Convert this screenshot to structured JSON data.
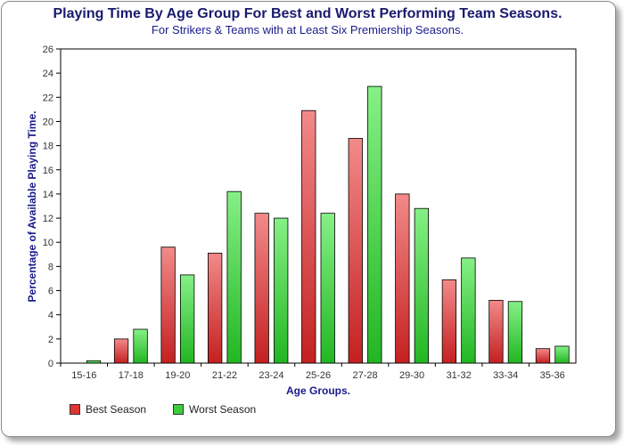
{
  "chart_data": {
    "type": "bar",
    "title": "Playing Time By Age Group For Best and Worst Performing Team Seasons.",
    "subtitle": "For Strikers & Teams with at Least Six Premiership Seasons.",
    "xlabel": "Age Groups.",
    "ylabel": "Percentage of Available Playing Time.",
    "ylim": [
      0,
      26
    ],
    "yticks": [
      0,
      2,
      4,
      6,
      8,
      10,
      12,
      14,
      16,
      18,
      20,
      22,
      24,
      26
    ],
    "grid": false,
    "legend_position": "bottom-left",
    "categories": [
      "15-16",
      "17-18",
      "19-20",
      "21-22",
      "23-24",
      "25-26",
      "27-28",
      "29-30",
      "31-32",
      "33-34",
      "35-36"
    ],
    "series": [
      {
        "name": "Best Season",
        "color": "#e03434",
        "values": [
          0,
          2.0,
          9.6,
          9.1,
          12.4,
          20.9,
          18.6,
          14.0,
          6.9,
          5.2,
          1.2
        ]
      },
      {
        "name": "Worst Season",
        "color": "#3ccc3c",
        "values": [
          0.2,
          2.8,
          7.3,
          14.2,
          12.0,
          12.4,
          22.9,
          12.8,
          8.7,
          5.1,
          1.4
        ]
      }
    ]
  }
}
